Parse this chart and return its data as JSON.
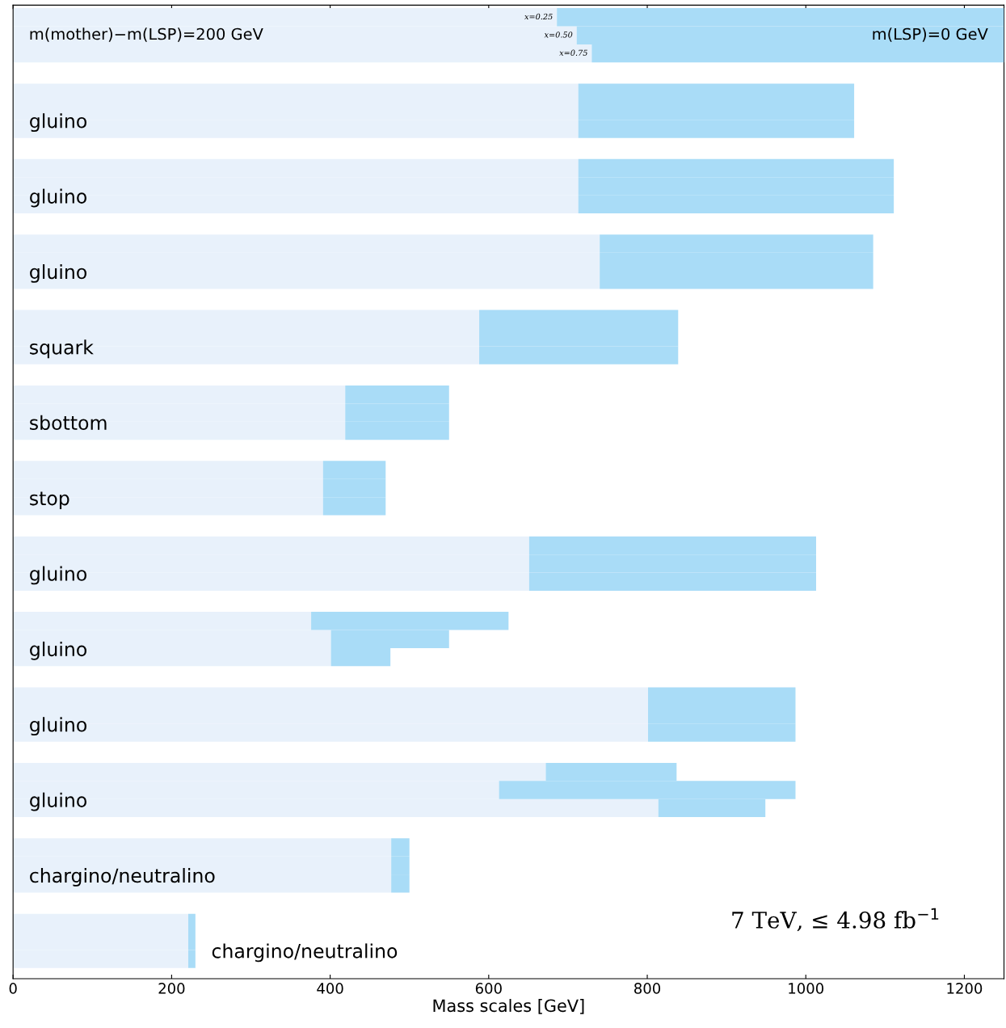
{
  "chart_data": {
    "type": "bar",
    "orientation": "horizontal",
    "stacked": true,
    "xlabel": "Mass scales [GeV]",
    "categories": [
      null,
      null,
      null,
      null,
      null,
      "gluino",
      null,
      null,
      "gluino",
      null,
      null,
      "gluino",
      null,
      null,
      "squark",
      null,
      null,
      "sbottom",
      null,
      null,
      "stop",
      null,
      null,
      "gluino",
      null,
      null,
      "gluino",
      null,
      null,
      "gluino",
      null,
      null,
      "gluino",
      null,
      null,
      "chargino/neutralino",
      null,
      null,
      "chargino/neutralino"
    ],
    "series": [
      {
        "name": "m(mother)−m(LSP)=200 GeV",
        "color": "#e8f1fb",
        "values": [
          686,
          711,
          730,
          713,
          713,
          713,
          713,
          713,
          713,
          740,
          740,
          740,
          588,
          588,
          588,
          419,
          419,
          419,
          391,
          391,
          391,
          651,
          651,
          651,
          376,
          401,
          401,
          801,
          801,
          801,
          672,
          613,
          814,
          477,
          477,
          477,
          221,
          221,
          221
        ]
      },
      {
        "name": "m(LSP)=0 GeV",
        "color": "#a9dcf7",
        "values": [
          564,
          539,
          520,
          348,
          348,
          348,
          398,
          398,
          398,
          345,
          345,
          345,
          251,
          251,
          251,
          131,
          131,
          131,
          79,
          79,
          79,
          362,
          362,
          362,
          249,
          149,
          75,
          186,
          186,
          186,
          165,
          374,
          135,
          23,
          23,
          23,
          9,
          9,
          9
        ]
      }
    ],
    "annotations": [
      "x=0.25",
      "x=0.50",
      "x=0.75",
      "7 TeV, ≤ 4.98 fb$^{−1}$"
    ],
    "xlim": [
      0,
      1250
    ],
    "xticks": [
      0,
      200,
      400,
      600,
      800,
      1000,
      1200
    ],
    "tick_labels": "x",
    "grid": false,
    "legend": false
  }
}
